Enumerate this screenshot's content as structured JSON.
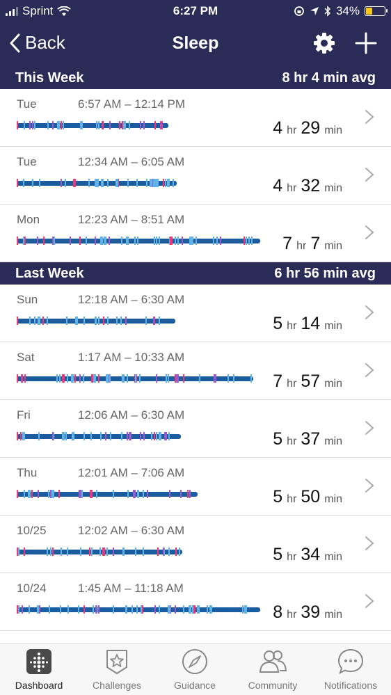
{
  "status_bar": {
    "carrier": "Sprint",
    "time": "6:27 PM",
    "battery": "34%"
  },
  "nav": {
    "back_label": "Back",
    "title": "Sleep",
    "settings_icon": "gear-icon",
    "add_icon": "plus-icon"
  },
  "this_week": {
    "title": "This Week",
    "avg": "8 hr 4 min avg",
    "rows": [
      {
        "day": "Tue",
        "range": "6:57 AM – 12:14 PM",
        "h": "4",
        "h_unit": "hr",
        "m": "29",
        "m_unit": "min"
      },
      {
        "day": "Tue",
        "range": "12:34 AM – 6:05 AM",
        "h": "4",
        "h_unit": "hr",
        "m": "32",
        "m_unit": "min"
      },
      {
        "day": "Mon",
        "range": "12:23 AM – 8:51 AM",
        "h": "7",
        "h_unit": "hr",
        "m": "7",
        "m_unit": "min"
      }
    ]
  },
  "last_week": {
    "title": "Last Week",
    "avg": "6 hr 56 min avg",
    "rows": [
      {
        "day": "Sun",
        "range": "12:18 AM – 6:30 AM",
        "h": "5",
        "h_unit": "hr",
        "m": "14",
        "m_unit": "min"
      },
      {
        "day": "Sat",
        "range": "1:17 AM – 10:33 AM",
        "h": "7",
        "h_unit": "hr",
        "m": "57",
        "m_unit": "min"
      },
      {
        "day": "Fri",
        "range": "12:06 AM – 6:30 AM",
        "h": "5",
        "h_unit": "hr",
        "m": "37",
        "m_unit": "min"
      },
      {
        "day": "Thu",
        "range": "12:01 AM – 7:06 AM",
        "h": "5",
        "h_unit": "hr",
        "m": "50",
        "m_unit": "min"
      },
      {
        "day": "10/25",
        "range": "12:02 AM – 6:30 AM",
        "h": "5",
        "h_unit": "hr",
        "m": "34",
        "m_unit": "min"
      },
      {
        "day": "10/24",
        "range": "1:45 AM – 11:18 AM",
        "h": "8",
        "h_unit": "hr",
        "m": "39",
        "m_unit": "min"
      }
    ]
  },
  "tabs": [
    {
      "label": "Dashboard",
      "icon": "dashboard-icon",
      "active": true
    },
    {
      "label": "Challenges",
      "icon": "star-badge-icon",
      "active": false
    },
    {
      "label": "Guidance",
      "icon": "compass-icon",
      "active": false
    },
    {
      "label": "Community",
      "icon": "people-icon",
      "active": false
    },
    {
      "label": "Notifications",
      "icon": "chat-bubble-icon",
      "active": false
    }
  ],
  "colors": {
    "nav_bg": "#2a2b56",
    "deep": "#1a5c9e",
    "light": "#5fb3e8",
    "rem": "#9b59d0",
    "awake": "#f0357a"
  }
}
